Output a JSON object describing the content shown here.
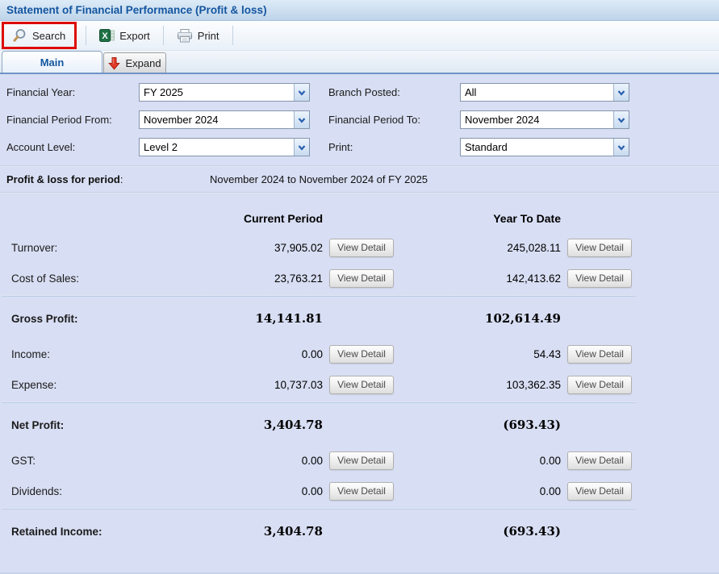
{
  "window": {
    "title": "Statement of Financial Performance (Profit & loss)"
  },
  "toolbar": {
    "search_label": "Search",
    "export_label": "Export",
    "print_label": "Print"
  },
  "tabs": [
    {
      "label": "Main",
      "active": true
    },
    {
      "label": "Expand",
      "active": false,
      "icon": "red-down-arrow-icon"
    }
  ],
  "filters": {
    "left": [
      {
        "label": "Financial Year:",
        "value": "FY 2025"
      },
      {
        "label": "Financial Period From:",
        "value": "November 2024"
      },
      {
        "label": "Account Level:",
        "value": "Level 2"
      }
    ],
    "right": [
      {
        "label": "Branch Posted:",
        "value": "All"
      },
      {
        "label": "Financial Period To:",
        "value": "November 2024"
      },
      {
        "label": "Print:",
        "value": "Standard"
      }
    ]
  },
  "period_summary": {
    "label": "Profit & loss for period",
    "colon": ":",
    "value": "November 2024 to November 2024 of FY 2025"
  },
  "report": {
    "columns": [
      "Current Period",
      "Year To Date"
    ],
    "view_detail_label": "View Detail",
    "rows": [
      {
        "type": "detail",
        "label": "Turnover:",
        "current": "37,905.02",
        "ytd": "245,028.11"
      },
      {
        "type": "detail",
        "label": "Cost of Sales:",
        "current": "23,763.21",
        "ytd": "142,413.62"
      },
      {
        "type": "divider"
      },
      {
        "type": "total",
        "label": "Gross Profit:",
        "current": "14,141.81",
        "ytd": "102,614.49"
      },
      {
        "type": "detail",
        "label": "Income:",
        "current": "0.00",
        "ytd": "54.43"
      },
      {
        "type": "detail",
        "label": "Expense:",
        "current": "10,737.03",
        "ytd": "103,362.35"
      },
      {
        "type": "divider"
      },
      {
        "type": "total",
        "label": "Net Profit:",
        "current": "3,404.78",
        "ytd": "(693.43)"
      },
      {
        "type": "detail",
        "label": "GST:",
        "current": "0.00",
        "ytd": "0.00"
      },
      {
        "type": "detail",
        "label": "Dividends:",
        "current": "0.00",
        "ytd": "0.00"
      },
      {
        "type": "divider"
      },
      {
        "type": "total",
        "label": "Retained Income:",
        "current": "3,404.78",
        "ytd": "(693.43)"
      }
    ]
  },
  "colors": {
    "title_text": "#1456a0",
    "panel_bg": "#d8def3",
    "highlight_red": "#dd0a04",
    "excel_green": "#1e7145",
    "arrow_red": "#e23a29",
    "tab_underline_blue": "#7094c6"
  }
}
